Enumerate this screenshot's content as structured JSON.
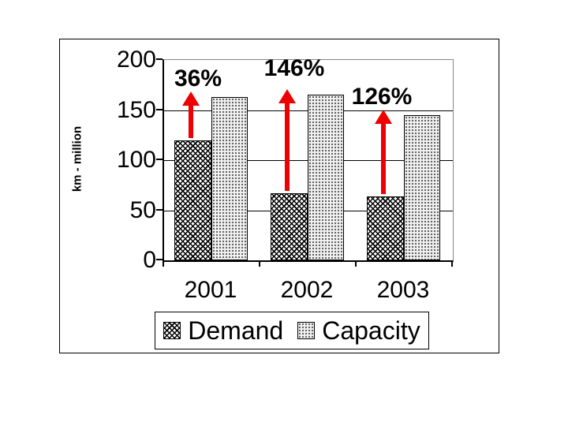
{
  "chart_data": {
    "type": "bar",
    "title": "",
    "categories": [
      "2001",
      "2002",
      "2003"
    ],
    "series": [
      {
        "name": "Demand",
        "values": [
          120,
          67,
          64
        ],
        "pattern": "crosshatch-dark"
      },
      {
        "name": "Capacity",
        "values": [
          163,
          165,
          145
        ],
        "pattern": "dots-light"
      }
    ],
    "annotations": [
      {
        "label": "36%",
        "category": "2001",
        "meaning": "capacity-over-demand-growth"
      },
      {
        "label": "146%",
        "category": "2002",
        "meaning": "capacity-over-demand-growth"
      },
      {
        "label": "126%",
        "category": "2003",
        "meaning": "capacity-over-demand-growth"
      }
    ],
    "xlabel": "",
    "ylabel": "km - million",
    "ylim": [
      0,
      200
    ],
    "yticks": [
      0,
      50,
      100,
      150,
      200
    ],
    "grid": true,
    "legend_position": "bottom",
    "colors": {
      "arrow": "#ee0000",
      "text": "#000000",
      "plot_border_gray": "#858585",
      "axis_black": "#000000",
      "background": "#ffffff"
    }
  }
}
